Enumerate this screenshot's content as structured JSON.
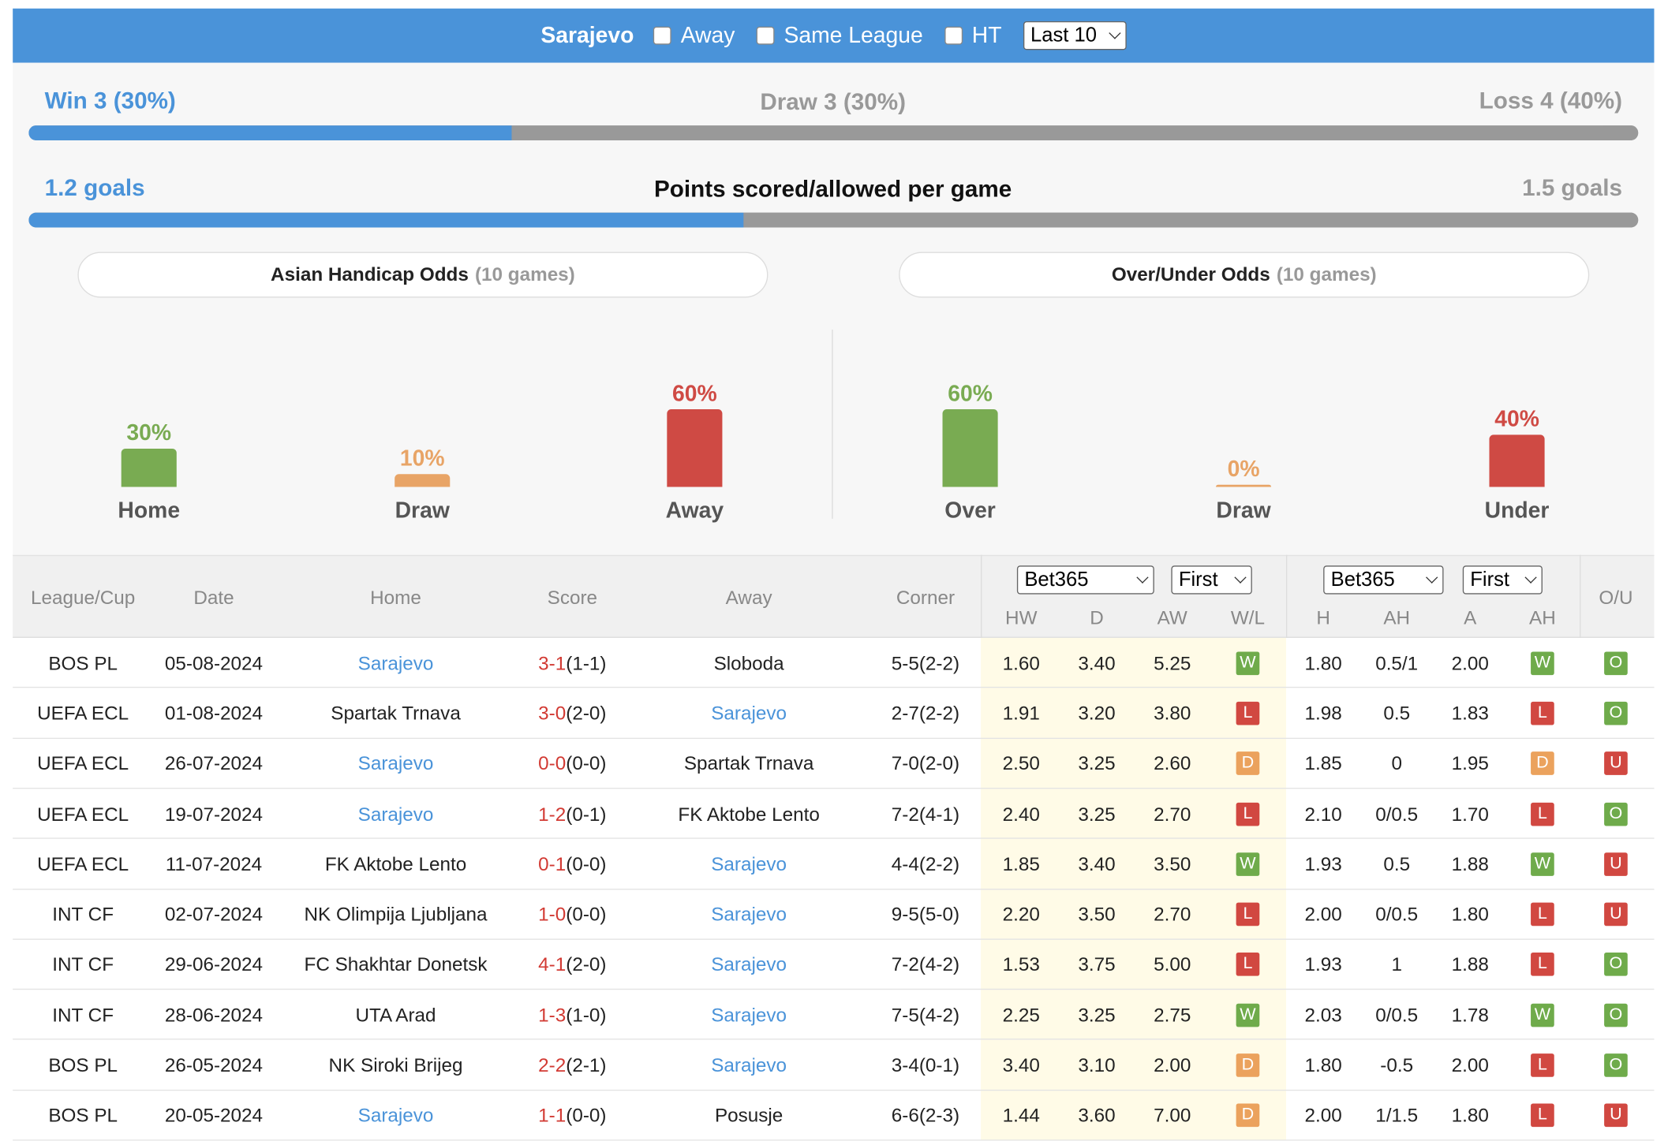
{
  "header": {
    "team": "Sarajevo",
    "options": [
      "Away",
      "Same League",
      "HT"
    ],
    "select": "Last 10"
  },
  "summary": {
    "win": {
      "label": "Win 3 (30%)",
      "value": 30
    },
    "draw": {
      "label": "Draw 3 (30%)",
      "value": 30
    },
    "loss": {
      "label": "Loss 4 (40%)",
      "value": 40
    }
  },
  "goals": {
    "title": "Points scored/allowed per game",
    "scored": {
      "label": "1.2 goals",
      "value": 1.2
    },
    "allowed": {
      "label": "1.5 goals",
      "value": 1.5
    }
  },
  "odds": [
    {
      "title": "Asian Handicap Odds",
      "games": "(10 games)",
      "items": [
        {
          "label": "Home",
          "value": 30,
          "value_label": "30%",
          "color": "#79ab52"
        },
        {
          "label": "Draw",
          "value": 10,
          "value_label": "10%",
          "color": "#e8a466"
        },
        {
          "label": "Away",
          "value": 60,
          "value_label": "60%",
          "color": "#cf4a44"
        }
      ]
    },
    {
      "title": "Over/Under Odds",
      "games": "(10 games)",
      "items": [
        {
          "label": "Over",
          "value": 60,
          "value_label": "60%",
          "color": "#79ab52"
        },
        {
          "label": "Draw",
          "value": 0,
          "value_label": "0%",
          "color": "#e8a466"
        },
        {
          "label": "Under",
          "value": 40,
          "value_label": "40%",
          "color": "#cf4a44"
        }
      ]
    }
  ],
  "table": {
    "headers": [
      "League/Cup",
      "Date",
      "Home",
      "Score",
      "Away",
      "Corner"
    ],
    "ou_header": "O/U",
    "bookmaker_selects": [
      [
        "Bet365",
        "First"
      ],
      [
        "Bet365",
        "First"
      ]
    ],
    "odds_headers": [
      "HW",
      "D",
      "AW",
      "W/L"
    ],
    "ah_headers": [
      "H",
      "AH",
      "A",
      "AH"
    ],
    "badge_colors": {
      "W": "#6fab4b",
      "L": "#d14841",
      "D": "#eba25d",
      "O": "#6fab4b",
      "U": "#d14841"
    },
    "rows": [
      {
        "league": "BOS PL",
        "date": "05-08-2024",
        "home": "Sarajevo",
        "score": "3-1",
        "ht": "(1-1)",
        "away": "Sloboda",
        "corner": "5-5(2-2)",
        "hw": "1.60",
        "d": "3.40",
        "aw": "5.25",
        "wl": "W",
        "h": "1.80",
        "ah": "0.5/1",
        "a": "2.00",
        "ah_result": "W",
        "ou": "O"
      },
      {
        "league": "UEFA ECL",
        "date": "01-08-2024",
        "home": "Spartak Trnava",
        "score": "3-0",
        "ht": "(2-0)",
        "away": "Sarajevo",
        "corner": "2-7(2-2)",
        "hw": "1.91",
        "d": "3.20",
        "aw": "3.80",
        "wl": "L",
        "h": "1.98",
        "ah": "0.5",
        "a": "1.83",
        "ah_result": "L",
        "ou": "O"
      },
      {
        "league": "UEFA ECL",
        "date": "26-07-2024",
        "home": "Sarajevo",
        "score": "0-0",
        "ht": "(0-0)",
        "away": "Spartak Trnava",
        "corner": "7-0(2-0)",
        "hw": "2.50",
        "d": "3.25",
        "aw": "2.60",
        "wl": "D",
        "h": "1.85",
        "ah": "0",
        "a": "1.95",
        "ah_result": "D",
        "ou": "U"
      },
      {
        "league": "UEFA ECL",
        "date": "19-07-2024",
        "home": "Sarajevo",
        "score": "1-2",
        "ht": "(0-1)",
        "away": "FK Aktobe Lento",
        "corner": "7-2(4-1)",
        "hw": "2.40",
        "d": "3.25",
        "aw": "2.70",
        "wl": "L",
        "h": "2.10",
        "ah": "0/0.5",
        "a": "1.70",
        "ah_result": "L",
        "ou": "O"
      },
      {
        "league": "UEFA ECL",
        "date": "11-07-2024",
        "home": "FK Aktobe Lento",
        "score": "0-1",
        "ht": "(0-0)",
        "away": "Sarajevo",
        "corner": "4-4(2-2)",
        "hw": "1.85",
        "d": "3.40",
        "aw": "3.50",
        "wl": "W",
        "h": "1.93",
        "ah": "0.5",
        "a": "1.88",
        "ah_result": "W",
        "ou": "U"
      },
      {
        "league": "INT CF",
        "date": "02-07-2024",
        "home": "NK Olimpija Ljubljana",
        "score": "1-0",
        "ht": "(0-0)",
        "away": "Sarajevo",
        "corner": "9-5(5-0)",
        "hw": "2.20",
        "d": "3.50",
        "aw": "2.70",
        "wl": "L",
        "h": "2.00",
        "ah": "0/0.5",
        "a": "1.80",
        "ah_result": "L",
        "ou": "U"
      },
      {
        "league": "INT CF",
        "date": "29-06-2024",
        "home": "FC Shakhtar Donetsk",
        "score": "4-1",
        "ht": "(2-0)",
        "away": "Sarajevo",
        "corner": "7-2(4-2)",
        "hw": "1.53",
        "d": "3.75",
        "aw": "5.00",
        "wl": "L",
        "h": "1.93",
        "ah": "1",
        "a": "1.88",
        "ah_result": "L",
        "ou": "O"
      },
      {
        "league": "INT CF",
        "date": "28-06-2024",
        "home": "UTA Arad",
        "score": "1-3",
        "ht": "(1-0)",
        "away": "Sarajevo",
        "corner": "7-5(4-2)",
        "hw": "2.25",
        "d": "3.25",
        "aw": "2.75",
        "wl": "W",
        "h": "2.03",
        "ah": "0/0.5",
        "a": "1.78",
        "ah_result": "W",
        "ou": "O"
      },
      {
        "league": "BOS PL",
        "date": "26-05-2024",
        "home": "NK Siroki Brijeg",
        "score": "2-2",
        "ht": "(2-1)",
        "away": "Sarajevo",
        "corner": "3-4(0-1)",
        "hw": "3.40",
        "d": "3.10",
        "aw": "2.00",
        "wl": "D",
        "h": "1.80",
        "ah": "-0.5",
        "a": "2.00",
        "ah_result": "L",
        "ou": "O"
      },
      {
        "league": "BOS PL",
        "date": "20-05-2024",
        "home": "Sarajevo",
        "score": "1-1",
        "ht": "(0-0)",
        "away": "Posusje",
        "corner": "6-6(2-3)",
        "hw": "1.44",
        "d": "3.60",
        "aw": "7.00",
        "wl": "D",
        "h": "2.00",
        "ah": "1/1.5",
        "a": "1.80",
        "ah_result": "L",
        "ou": "U"
      }
    ]
  }
}
